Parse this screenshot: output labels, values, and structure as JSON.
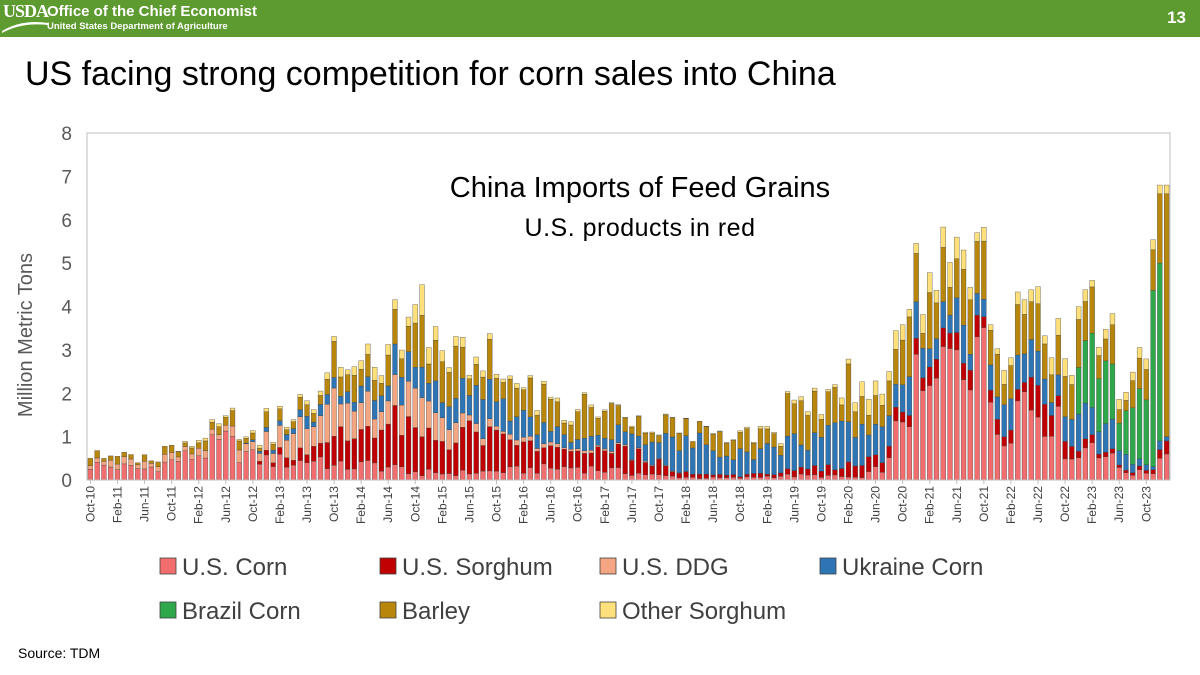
{
  "header": {
    "logo_text": "USDA",
    "office": "Office of the Chief Economist",
    "department": "United States Department of Agriculture",
    "slide_number": "13"
  },
  "slide": {
    "title": "US facing strong competition for corn sales into China",
    "source": "Source: TDM"
  },
  "colors": {
    "header_green": "#5d9a2f",
    "us_corn": "#f26e6e",
    "us_sorghum": "#c00000",
    "us_ddg": "#f4a582",
    "ukraine_corn": "#2e75b6",
    "brazil_corn": "#2ea84a",
    "barley": "#b8860b",
    "other_sorghum": "#ffe07a"
  },
  "chart_data": {
    "type": "bar",
    "stacked": true,
    "title": "China Imports of Feed Grains",
    "subtitle": "U.S. products in red",
    "xlabel": "",
    "ylabel": "Million Metric Tons",
    "ylim": [
      0,
      8
    ],
    "yticks": [
      "0",
      "1",
      "2",
      "3",
      "4",
      "5",
      "6",
      "7",
      "8"
    ],
    "x_tick_labels": [
      "Oct-10",
      "Feb-11",
      "Jun-11",
      "Oct-11",
      "Feb-12",
      "Jun-12",
      "Oct-12",
      "Feb-13",
      "Jun-13",
      "Oct-13",
      "Feb-14",
      "Jun-14",
      "Oct-14",
      "Feb-15",
      "Jun-15",
      "Oct-15",
      "Feb-16",
      "Jun-16",
      "Oct-16",
      "Feb-17",
      "Jun-17",
      "Oct-17",
      "Feb-18",
      "Jun-18",
      "Oct-18",
      "Feb-19",
      "Jun-19",
      "Oct-19",
      "Feb-20",
      "Jun-20",
      "Oct-20",
      "Feb-21",
      "Jun-21",
      "Oct-21",
      "Feb-22",
      "Jun-22",
      "Oct-22",
      "Feb-23",
      "Jun-23",
      "Oct-23"
    ],
    "legend": [
      {
        "key": "us_corn",
        "label": "U.S. Corn"
      },
      {
        "key": "us_sorghum",
        "label": "U.S. Sorghum"
      },
      {
        "key": "us_ddg",
        "label": "U.S. DDG"
      },
      {
        "key": "ukraine_corn",
        "label": "Ukraine Corn"
      },
      {
        "key": "brazil_corn",
        "label": "Brazil Corn"
      },
      {
        "key": "barley",
        "label": "Barley"
      },
      {
        "key": "other_sorghum",
        "label": "Other Sorghum"
      }
    ],
    "series_order": [
      "us_corn",
      "us_sorghum",
      "us_ddg",
      "ukraine_corn",
      "brazil_corn",
      "barley",
      "other_sorghum"
    ],
    "anchors": {
      "us_corn": [
        [
          0,
          0.35
        ],
        [
          8,
          0.25
        ],
        [
          16,
          0.6
        ],
        [
          20,
          0.85
        ],
        [
          24,
          0.5
        ],
        [
          30,
          0.4
        ],
        [
          34,
          0.5
        ],
        [
          36,
          0.3
        ],
        [
          42,
          0.35
        ],
        [
          48,
          0.2
        ],
        [
          53,
          0.15
        ],
        [
          60,
          0.2
        ],
        [
          66,
          0.25
        ],
        [
          72,
          0.3
        ],
        [
          78,
          0.2
        ],
        [
          84,
          0.1
        ],
        [
          90,
          0.05
        ],
        [
          96,
          0.05
        ],
        [
          102,
          0.1
        ],
        [
          108,
          0.1
        ],
        [
          114,
          0.05
        ],
        [
          118,
          0.4
        ],
        [
          120,
          1.6
        ],
        [
          122,
          2.0
        ],
        [
          124,
          1.8
        ],
        [
          126,
          2.5
        ],
        [
          128,
          3.1
        ],
        [
          130,
          3.3
        ],
        [
          132,
          2.6
        ],
        [
          134,
          1.3
        ],
        [
          136,
          1.5
        ],
        [
          138,
          2.0
        ],
        [
          140,
          1.7
        ],
        [
          142,
          1.6
        ],
        [
          144,
          0.8
        ],
        [
          146,
          0.5
        ],
        [
          148,
          1.0
        ],
        [
          150,
          0.6
        ],
        [
          152,
          0.3
        ],
        [
          154,
          0.15
        ],
        [
          157,
          0.2
        ],
        [
          159,
          0.6
        ]
      ],
      "us_sorghum": [
        [
          0,
          0
        ],
        [
          24,
          0
        ],
        [
          26,
          0.1
        ],
        [
          30,
          0.2
        ],
        [
          35,
          0.5
        ],
        [
          40,
          0.8
        ],
        [
          44,
          1.0
        ],
        [
          48,
          0.9
        ],
        [
          52,
          0.8
        ],
        [
          56,
          0.9
        ],
        [
          60,
          0.7
        ],
        [
          66,
          0.5
        ],
        [
          72,
          0.3
        ],
        [
          78,
          0.5
        ],
        [
          82,
          0.4
        ],
        [
          86,
          0.1
        ],
        [
          96,
          0.05
        ],
        [
          104,
          0.1
        ],
        [
          110,
          0.2
        ],
        [
          116,
          0.4
        ],
        [
          120,
          0.2
        ],
        [
          124,
          0.4
        ],
        [
          128,
          0.4
        ],
        [
          130,
          0.5
        ],
        [
          134,
          0.3
        ],
        [
          138,
          0.3
        ],
        [
          140,
          0.9
        ],
        [
          142,
          0.5
        ],
        [
          146,
          0.2
        ],
        [
          150,
          0.1
        ],
        [
          154,
          0.05
        ],
        [
          159,
          0.1
        ]
      ],
      "us_ddg": [
        [
          0,
          0.1
        ],
        [
          12,
          0.15
        ],
        [
          20,
          0.2
        ],
        [
          26,
          0.3
        ],
        [
          32,
          0.6
        ],
        [
          36,
          0.8
        ],
        [
          40,
          0.7
        ],
        [
          44,
          0.7
        ],
        [
          48,
          1.0
        ],
        [
          52,
          0.5
        ],
        [
          56,
          0.2
        ],
        [
          60,
          0.1
        ],
        [
          72,
          0.05
        ],
        [
          90,
          0
        ],
        [
          159,
          0
        ]
      ],
      "ukraine_corn": [
        [
          0,
          0
        ],
        [
          22,
          0
        ],
        [
          28,
          0.1
        ],
        [
          32,
          0.2
        ],
        [
          36,
          0.2
        ],
        [
          40,
          0.3
        ],
        [
          44,
          0.5
        ],
        [
          48,
          0.6
        ],
        [
          52,
          0.6
        ],
        [
          56,
          0.8
        ],
        [
          60,
          0.6
        ],
        [
          66,
          0.4
        ],
        [
          72,
          0.2
        ],
        [
          78,
          0.4
        ],
        [
          82,
          0.5
        ],
        [
          86,
          0.6
        ],
        [
          90,
          0.7
        ],
        [
          94,
          0.6
        ],
        [
          98,
          0.5
        ],
        [
          102,
          0.6
        ],
        [
          106,
          0.7
        ],
        [
          110,
          0.8
        ],
        [
          114,
          0.7
        ],
        [
          118,
          0.8
        ],
        [
          122,
          0.6
        ],
        [
          126,
          0.7
        ],
        [
          128,
          0.7
        ],
        [
          130,
          0.6
        ],
        [
          134,
          0.5
        ],
        [
          138,
          0.7
        ],
        [
          140,
          0.8
        ],
        [
          142,
          0.5
        ],
        [
          144,
          0.6
        ],
        [
          148,
          0.7
        ],
        [
          150,
          0.6
        ],
        [
          152,
          0.4
        ],
        [
          154,
          0.2
        ],
        [
          157,
          0.1
        ],
        [
          159,
          0.1
        ]
      ],
      "brazil_corn": [
        [
          0,
          0
        ],
        [
          145,
          0
        ],
        [
          146,
          0.8
        ],
        [
          148,
          1.3
        ],
        [
          150,
          1.0
        ],
        [
          152,
          0.8
        ],
        [
          154,
          1.2
        ],
        [
          156,
          2.5
        ],
        [
          158,
          3.8
        ],
        [
          159,
          0.5
        ]
      ],
      "barley": [
        [
          0,
          0.15
        ],
        [
          8,
          0.1
        ],
        [
          16,
          0.15
        ],
        [
          20,
          0.25
        ],
        [
          24,
          0.2
        ],
        [
          30,
          0.15
        ],
        [
          34,
          0.35
        ],
        [
          38,
          0.5
        ],
        [
          42,
          0.6
        ],
        [
          46,
          0.7
        ],
        [
          48,
          0.8
        ],
        [
          52,
          0.7
        ],
        [
          56,
          0.6
        ],
        [
          60,
          0.55
        ],
        [
          66,
          0.55
        ],
        [
          72,
          0.6
        ],
        [
          78,
          0.5
        ],
        [
          84,
          0.3
        ],
        [
          90,
          0.3
        ],
        [
          96,
          0.4
        ],
        [
          102,
          0.5
        ],
        [
          106,
          0.7
        ],
        [
          110,
          0.8
        ],
        [
          114,
          0.8
        ],
        [
          118,
          0.9
        ],
        [
          122,
          0.9
        ],
        [
          126,
          0.9
        ],
        [
          128,
          0.9
        ],
        [
          130,
          0.9
        ],
        [
          134,
          0.8
        ],
        [
          136,
          1.0
        ],
        [
          138,
          1.0
        ],
        [
          140,
          0.8
        ],
        [
          144,
          0.6
        ],
        [
          148,
          0.7
        ],
        [
          152,
          0.5
        ],
        [
          154,
          0.5
        ],
        [
          156,
          0.6
        ],
        [
          158,
          1.6
        ],
        [
          159,
          1.6
        ]
      ],
      "other_sorghum": [
        [
          0,
          0
        ],
        [
          12,
          0
        ],
        [
          16,
          0.05
        ],
        [
          24,
          0.05
        ],
        [
          34,
          0.1
        ],
        [
          44,
          0.3
        ],
        [
          48,
          0.4
        ],
        [
          52,
          0.2
        ],
        [
          60,
          0.1
        ],
        [
          72,
          0.05
        ],
        [
          90,
          0
        ],
        [
          110,
          0.1
        ],
        [
          116,
          0.3
        ],
        [
          122,
          0.3
        ],
        [
          126,
          0.4
        ],
        [
          128,
          0.5
        ],
        [
          130,
          0.3
        ],
        [
          134,
          0.2
        ],
        [
          138,
          0.3
        ],
        [
          140,
          0.3
        ],
        [
          144,
          0.3
        ],
        [
          148,
          0.2
        ],
        [
          152,
          0.2
        ],
        [
          156,
          0.2
        ],
        [
          159,
          0.2
        ]
      ]
    },
    "overrides": {
      "49": {
        "us_corn": 0.1,
        "us_sorghum": 0.9,
        "us_ddg": 0.9,
        "ukraine_corn": 0.7,
        "barley": 1.2,
        "other_sorghum": 0.7
      },
      "128": {
        "us_corn": 3.0,
        "us_sorghum": 0.4,
        "ukraine_corn": 0.8,
        "barley": 0.9,
        "other_sorghum": 0.5
      },
      "131": {
        "us_corn": 3.3,
        "us_sorghum": 0.5,
        "ukraine_corn": 0.5,
        "barley": 1.2,
        "other_sorghum": 0.2
      },
      "158": {
        "us_corn": 0.5,
        "us_sorghum": 0.2,
        "ukraine_corn": 0.2,
        "brazil_corn": 4.1,
        "barley": 1.6,
        "other_sorghum": 0.2
      },
      "159": {
        "us_corn": 0.6,
        "us_sorghum": 0.3,
        "ukraine_corn": 0.1,
        "brazil_corn": 0.0,
        "barley": 5.6,
        "other_sorghum": 0.2
      }
    }
  }
}
